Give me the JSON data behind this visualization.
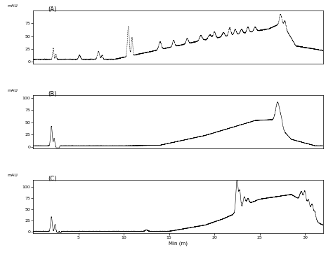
{
  "panels": [
    "(A)",
    "(B)",
    "(C)"
  ],
  "ylabel_A": "mAU",
  "ylabel_B": "mAU",
  "ylabel_C": "mAU",
  "xlabel": "Min (m)",
  "xlim": [
    0,
    32
  ],
  "yticks_A": [
    0,
    25,
    50,
    75
  ],
  "yticks_B": [
    0,
    25,
    50,
    75,
    100
  ],
  "yticks_C": [
    0,
    25,
    50,
    75,
    100
  ],
  "xticks": [
    5,
    10,
    15,
    20,
    25,
    30
  ],
  "line_color": "#000000",
  "background_color": "#ffffff"
}
